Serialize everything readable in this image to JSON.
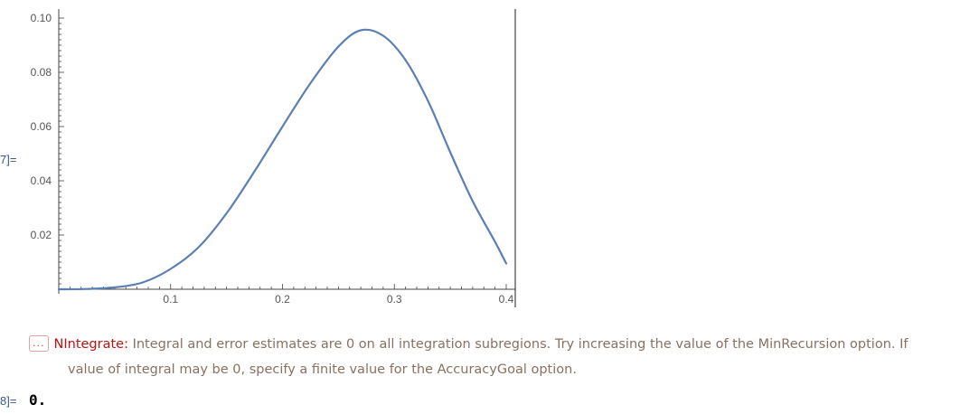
{
  "cells": {
    "out7_label": "7]=",
    "out8_label": "8]="
  },
  "chart_data": {
    "type": "line",
    "title": "",
    "xlabel": "",
    "ylabel": "",
    "xlim": [
      0.0,
      0.4
    ],
    "ylim": [
      0.0,
      0.1
    ],
    "x_ticks": [
      0.1,
      0.2,
      0.3,
      0.4
    ],
    "x_tick_labels": [
      "0.1",
      "0.2",
      "0.3",
      "0.4"
    ],
    "y_ticks": [
      0.02,
      0.04,
      0.06,
      0.08,
      0.1
    ],
    "y_tick_labels": [
      "0.02",
      "0.04",
      "0.06",
      "0.08",
      "0.10"
    ],
    "grid": false,
    "series": [
      {
        "color": "#5b7fb3",
        "x": [
          0.0,
          0.025,
          0.05,
          0.075,
          0.1,
          0.125,
          0.15,
          0.175,
          0.2,
          0.225,
          0.25,
          0.27,
          0.29,
          0.31,
          0.33,
          0.35,
          0.37,
          0.39,
          0.4
        ],
        "y": [
          0.0,
          0.0001,
          0.0007,
          0.0025,
          0.0075,
          0.0155,
          0.028,
          0.0435,
          0.06,
          0.076,
          0.0895,
          0.0955,
          0.0935,
          0.0845,
          0.0695,
          0.0505,
          0.0325,
          0.0175,
          0.0095
        ]
      }
    ]
  },
  "message": {
    "icon": "...",
    "symbol": "NIntegrate",
    "colon": ":",
    "line1": " Integral and error estimates are 0 on all integration subregions. Try increasing the value of the MinRecursion option. If",
    "line2": "value of integral may be 0, specify a finite value for the AccuracyGoal option."
  },
  "output8": {
    "value": "0."
  }
}
